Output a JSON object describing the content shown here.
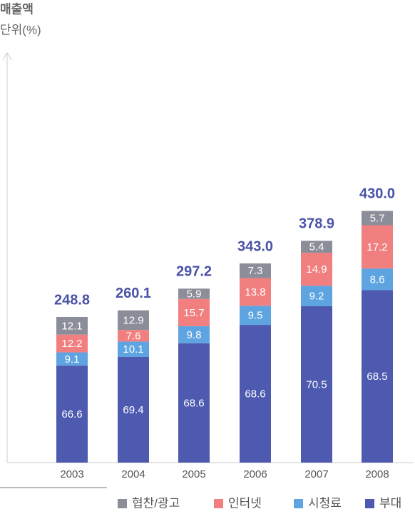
{
  "chart_data": {
    "type": "bar",
    "title": "매출액",
    "subtitle": "단위(%)",
    "categories": [
      "2003",
      "2004",
      "2005",
      "2006",
      "2007",
      "2008"
    ],
    "totals": [
      248.8,
      260.1,
      297.2,
      343.0,
      378.9,
      430.0
    ],
    "total_labels": [
      "248.8",
      "260.1",
      "297.2",
      "343.0",
      "378.9",
      "430.0"
    ],
    "series": [
      {
        "name": "협찬/광고",
        "color": "#8b8e98",
        "values": [
          12.1,
          12.9,
          5.9,
          7.3,
          5.4,
          5.7
        ]
      },
      {
        "name": "인터넷",
        "color": "#f27f80",
        "values": [
          12.2,
          7.6,
          15.7,
          13.8,
          14.9,
          17.2
        ]
      },
      {
        "name": "시청료",
        "color": "#5ea4e0",
        "values": [
          9.1,
          10.1,
          9.8,
          9.5,
          9.2,
          8.6
        ]
      },
      {
        "name": "부대",
        "color": "#4e5ab0",
        "values": [
          66.6,
          69.4,
          68.6,
          68.6,
          70.5,
          68.5
        ]
      }
    ],
    "ylim": [
      0,
      700
    ],
    "total_color": "#4a52a8"
  }
}
